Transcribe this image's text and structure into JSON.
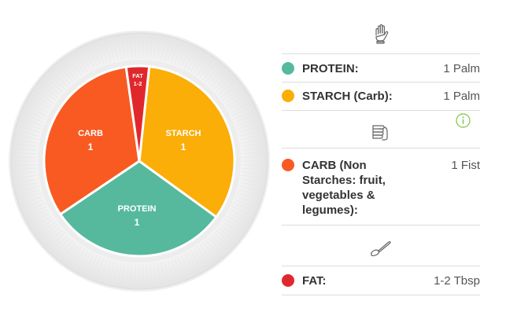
{
  "plate": {
    "segments": [
      {
        "key": "protein",
        "name": "PROTEIN",
        "amount": "1",
        "color": "#56b99d"
      },
      {
        "key": "starch",
        "name": "STARCH",
        "amount": "1",
        "color": "#fbad08"
      },
      {
        "key": "carb",
        "name": "CARB",
        "amount": "1",
        "color": "#f85a22"
      },
      {
        "key": "fat",
        "name": "FAT",
        "amount": "1-2",
        "color": "#e0282c"
      }
    ]
  },
  "legend": {
    "sections": [
      {
        "icon": "palm-hand-icon",
        "items": [
          {
            "label": "PROTEIN:",
            "value": "1 Palm",
            "color": "#56b99d"
          },
          {
            "label": "STARCH (Carb):",
            "value": "1 Palm",
            "color": "#fbad08"
          }
        ]
      },
      {
        "icon": "fist-icon",
        "items": [
          {
            "label_lines": [
              "CARB (Non",
              "Starches: fruit,",
              "vegetables &",
              "legumes):"
            ],
            "value": "1 Fist",
            "color": "#f85a22"
          }
        ]
      },
      {
        "icon": "spoon-icon",
        "items": [
          {
            "label": "FAT:",
            "value": "1-2 Tbsp",
            "color": "#e0282c"
          }
        ]
      }
    ],
    "info_icon": "info-icon"
  }
}
